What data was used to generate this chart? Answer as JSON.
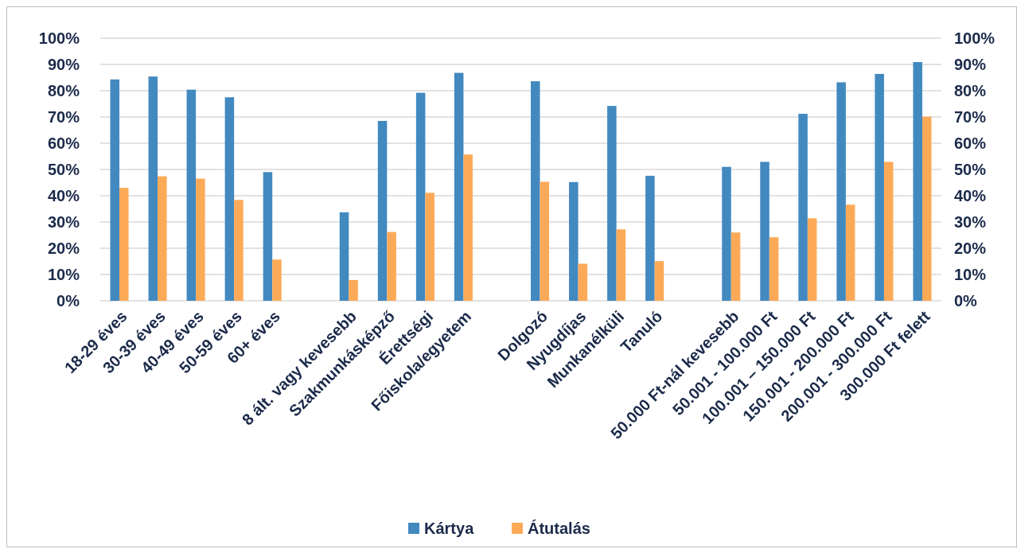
{
  "chart_data": {
    "type": "bar",
    "categories": [
      "18-29 éves",
      "30-39 éves",
      "40-49 éves",
      "50-59 éves",
      "60+ éves",
      null,
      "8 ált. vagy kevesebb",
      "Szakmunkásképző",
      "Érettségi",
      "Főiskola/egyetem",
      null,
      "Dolgozó",
      "Nyugdíjas",
      "Munkanélküli",
      "Tanuló",
      null,
      "50.000 Ft-nál kevesebb",
      "50.001 - 100.000 Ft",
      "100.001 – 150.000 Ft",
      "150.001 - 200.000 Ft",
      "200.001 - 300.000 Ft",
      "300.000 Ft felett"
    ],
    "series": [
      {
        "name": "Kártya",
        "color": "#4289c0",
        "values": [
          84.3,
          85.4,
          80.4,
          77.5,
          49.0,
          null,
          33.7,
          68.5,
          79.2,
          86.8,
          null,
          83.6,
          45.2,
          74.2,
          47.6,
          null,
          51.0,
          52.9,
          71.2,
          83.2,
          86.4,
          90.9
        ]
      },
      {
        "name": "Átutalás",
        "color": "#fdaa58",
        "values": [
          43.0,
          47.4,
          46.5,
          38.4,
          15.7,
          null,
          7.9,
          26.2,
          41.1,
          55.7,
          null,
          45.3,
          14.1,
          27.2,
          15.1,
          null,
          26.0,
          24.2,
          31.4,
          36.6,
          52.9,
          70.1
        ]
      }
    ],
    "ylim": [
      0,
      100
    ],
    "yticks": [
      {
        "value": 0,
        "label": "0%"
      },
      {
        "value": 10,
        "label": "10%"
      },
      {
        "value": 20,
        "label": "20%"
      },
      {
        "value": 30,
        "label": "30%"
      },
      {
        "value": 40,
        "label": "40%"
      },
      {
        "value": 50,
        "label": "50%"
      },
      {
        "value": 60,
        "label": "60%"
      },
      {
        "value": 70,
        "label": "70%"
      },
      {
        "value": 80,
        "label": "80%"
      },
      {
        "value": 90,
        "label": "90%"
      },
      {
        "value": 100,
        "label": "100%"
      }
    ],
    "y2lim": [
      0,
      100
    ],
    "y2ticks": [
      {
        "value": 0,
        "label": "0%"
      },
      {
        "value": 10,
        "label": "10%"
      },
      {
        "value": 20,
        "label": "20%"
      },
      {
        "value": 30,
        "label": "30%"
      },
      {
        "value": 40,
        "label": "40%"
      },
      {
        "value": 50,
        "label": "50%"
      },
      {
        "value": 60,
        "label": "60%"
      },
      {
        "value": 70,
        "label": "70%"
      },
      {
        "value": 80,
        "label": "80%"
      },
      {
        "value": 90,
        "label": "90%"
      },
      {
        "value": 100,
        "label": "100%"
      }
    ],
    "grid": "y",
    "legend": "bottom"
  }
}
